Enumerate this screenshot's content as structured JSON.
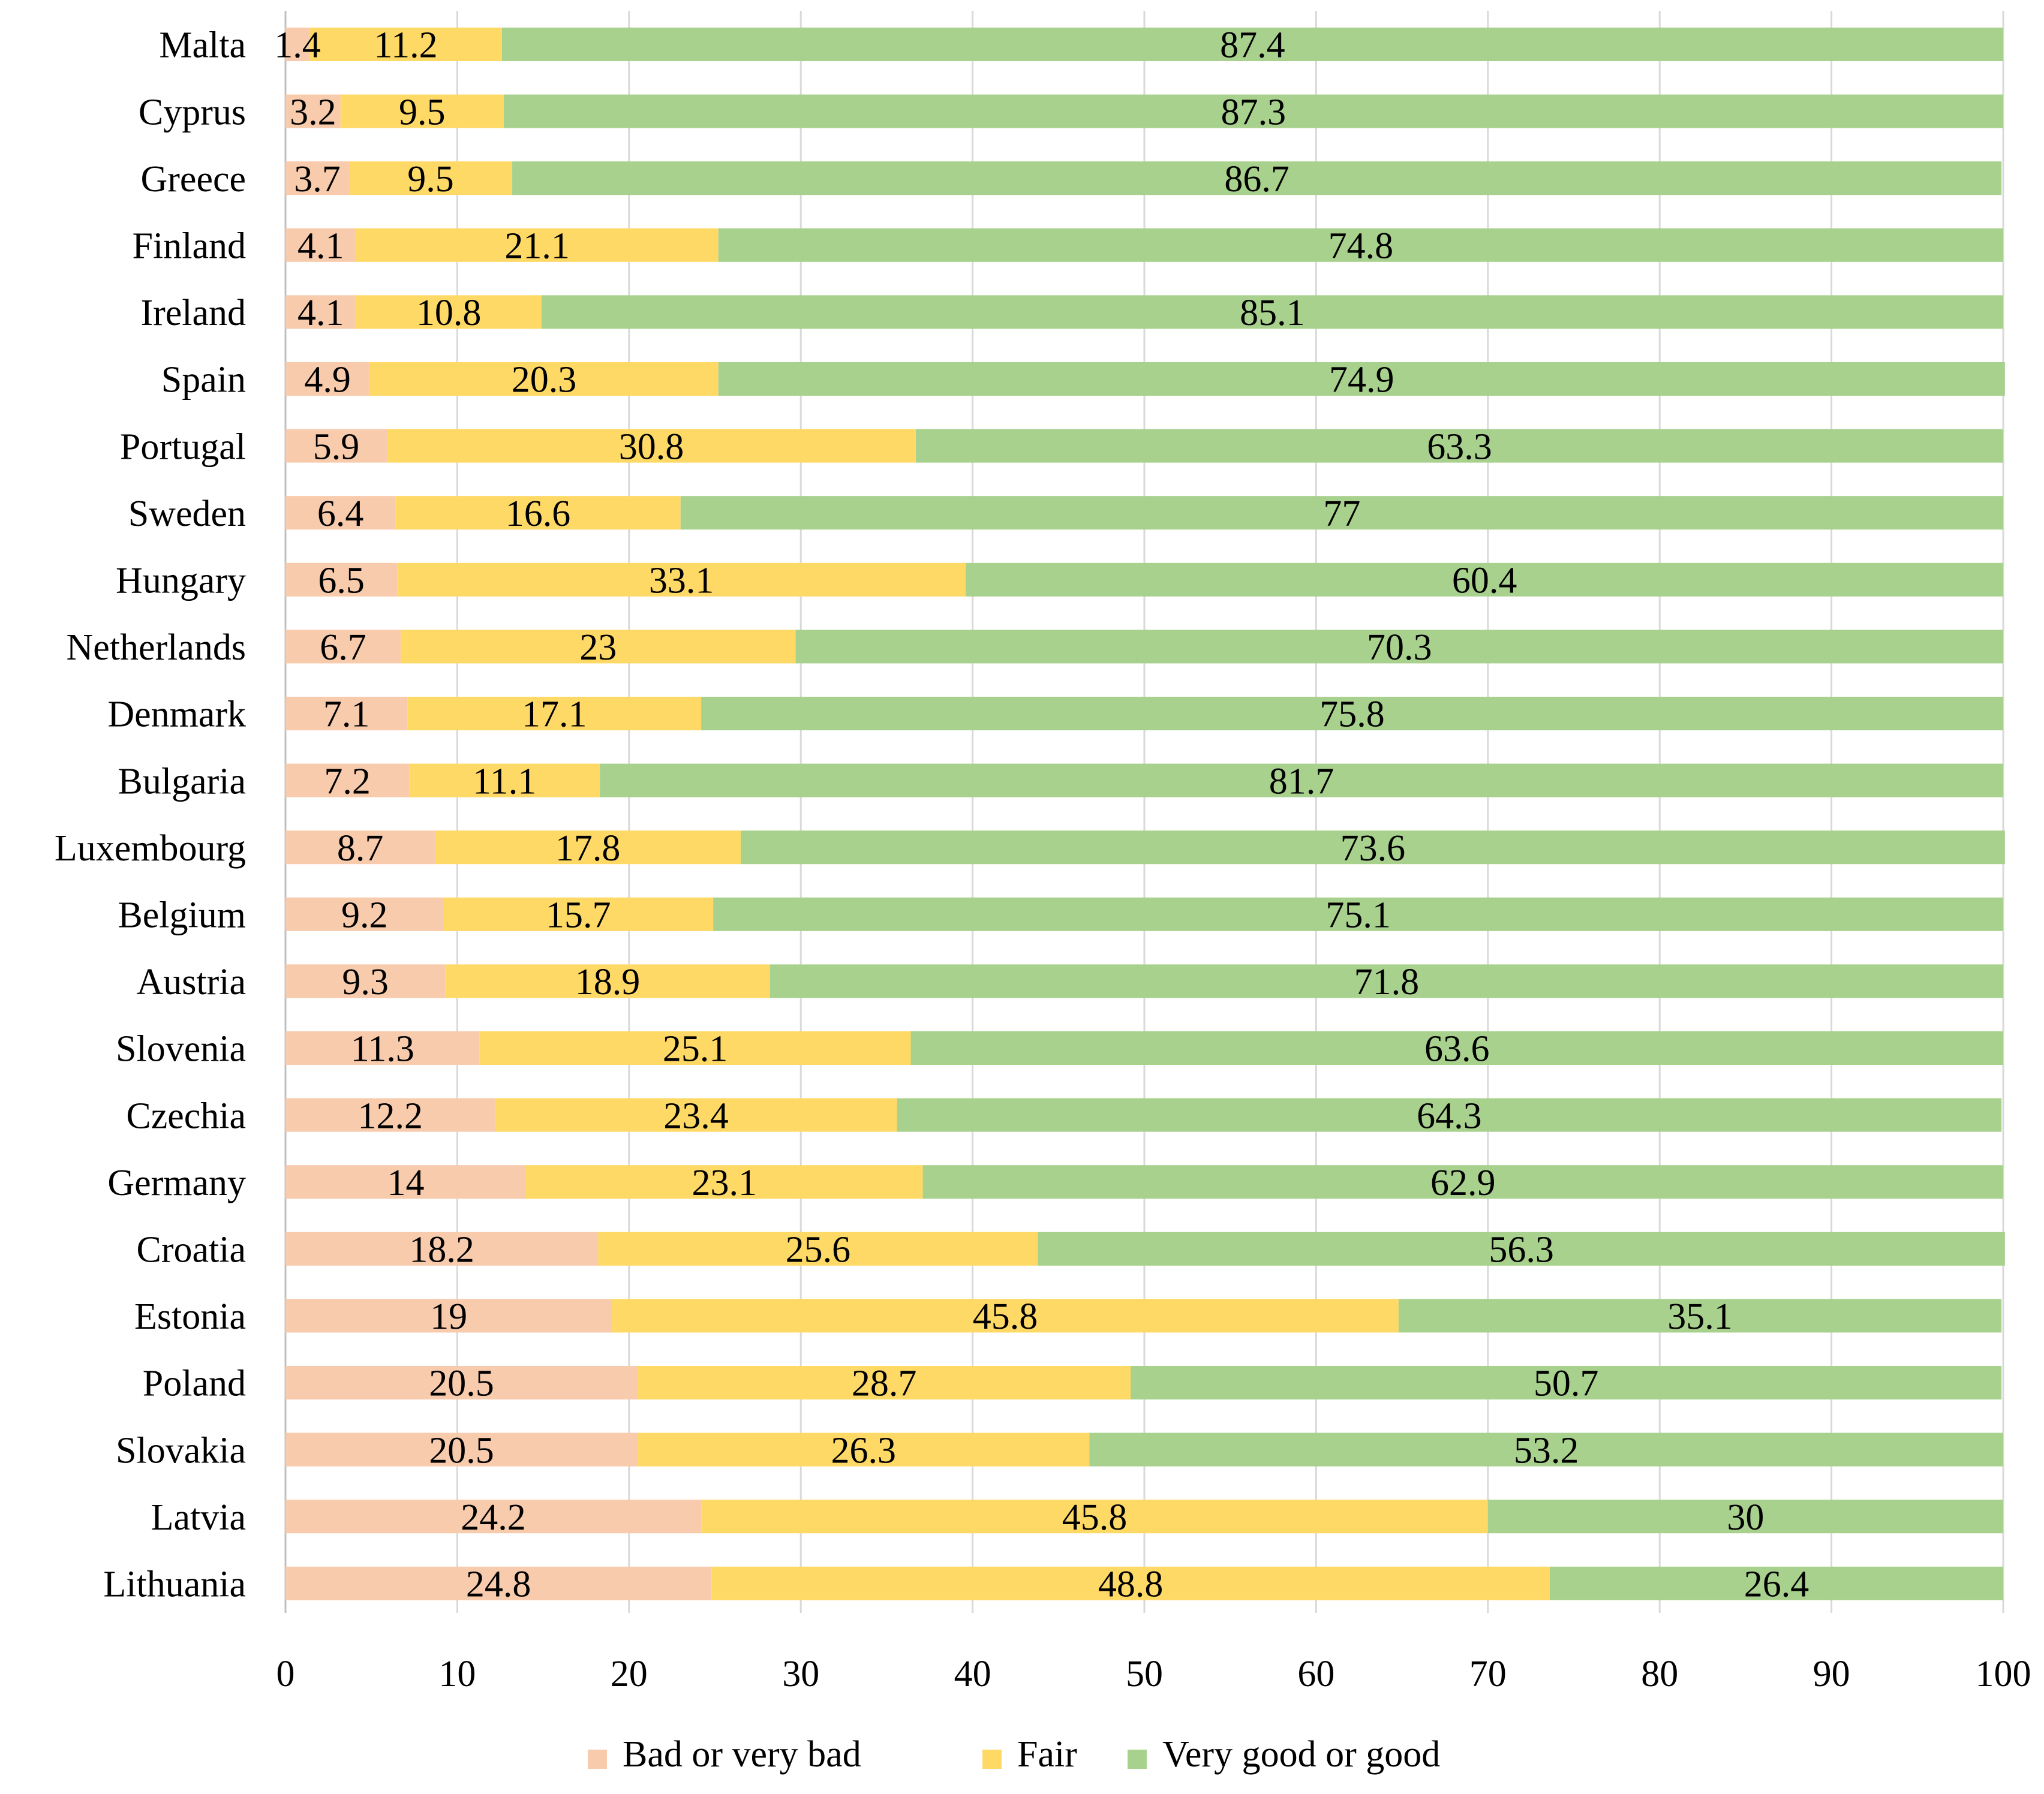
{
  "chart_data": {
    "type": "bar",
    "orientation": "horizontal",
    "stacked": true,
    "title": "",
    "xlabel": "",
    "ylabel": "",
    "xlim": [
      0,
      100
    ],
    "x_ticks": [
      "0",
      "10",
      "20",
      "30",
      "40",
      "50",
      "60",
      "70",
      "80",
      "90",
      "100"
    ],
    "grid": "vertical",
    "legend_position": "bottom",
    "categories": [
      "Malta",
      "Cyprus",
      "Greece",
      "Finland",
      "Ireland",
      "Spain",
      "Portugal",
      "Sweden",
      "Hungary",
      "Netherlands",
      "Denmark",
      "Bulgaria",
      "Luxembourg",
      "Belgium",
      "Austria",
      "Slovenia",
      "Czechia",
      "Germany",
      "Croatia",
      "Estonia",
      "Poland",
      "Slovakia",
      "Latvia",
      "Lithuania"
    ],
    "series": [
      {
        "name": "Bad or very bad",
        "color": "#f8cbad",
        "values": [
          1.4,
          3.2,
          3.7,
          4.1,
          4.1,
          4.9,
          5.9,
          6.4,
          6.5,
          6.7,
          7.1,
          7.2,
          8.7,
          9.2,
          9.3,
          11.3,
          12.2,
          14,
          18.2,
          19,
          20.5,
          20.5,
          24.2,
          24.8
        ],
        "labels": [
          "1.4",
          "3.2",
          "3.7",
          "4.1",
          "4.1",
          "4.9",
          "5.9",
          "6.4",
          "6.5",
          "6.7",
          "7.1",
          "7.2",
          "8.7",
          "9.2",
          "9.3",
          "11.3",
          "12.2",
          "14",
          "18.2",
          "19",
          "20.5",
          "20.5",
          "24.2",
          "24.8"
        ]
      },
      {
        "name": "Fair",
        "color": "#ffd966",
        "values": [
          11.2,
          9.5,
          9.5,
          21.1,
          10.8,
          20.3,
          30.8,
          16.6,
          33.1,
          23,
          17.1,
          11.1,
          17.8,
          15.7,
          18.9,
          25.1,
          23.4,
          23.1,
          25.6,
          45.8,
          28.7,
          26.3,
          45.8,
          48.8
        ],
        "labels": [
          "11.2",
          "9.5",
          "9.5",
          "21.1",
          "10.8",
          "20.3",
          "30.8",
          "16.6",
          "33.1",
          "23",
          "17.1",
          "11.1",
          "17.8",
          "15.7",
          "18.9",
          "25.1",
          "23.4",
          "23.1",
          "25.6",
          "45.8",
          "28.7",
          "26.3",
          "45.8",
          "48.8"
        ]
      },
      {
        "name": "Very good or good",
        "color": "#a9d18e",
        "values": [
          87.4,
          87.3,
          86.7,
          74.8,
          85.1,
          74.9,
          63.3,
          77,
          60.4,
          70.3,
          75.8,
          81.7,
          73.6,
          75.1,
          71.8,
          63.6,
          64.3,
          62.9,
          56.3,
          35.1,
          50.7,
          53.2,
          30,
          26.4
        ],
        "labels": [
          "87.4",
          "87.3",
          "86.7",
          "74.8",
          "85.1",
          "74.9",
          "63.3",
          "77",
          "60.4",
          "70.3",
          "75.8",
          "81.7",
          "73.6",
          "75.1",
          "71.8",
          "63.6",
          "64.3",
          "62.9",
          "56.3",
          "35.1",
          "50.7",
          "53.2",
          "30",
          "26.4"
        ]
      }
    ]
  },
  "colors": {
    "grid": "#d9d9d9",
    "axis": "#bfbfbf",
    "text": "#000000"
  }
}
